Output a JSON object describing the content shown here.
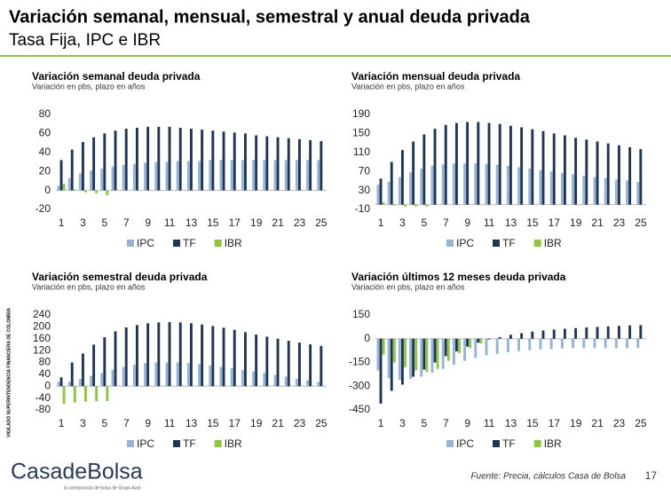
{
  "header": {
    "title": "Variación semanal, mensual, semestral y anual deuda privada",
    "subtitle": "Tasa Fija, IPC e IBR"
  },
  "side_label": "VIGILADO SUPERINTENDENCIA FINANCIERA DE COLOMBIA",
  "footer": {
    "logo": "CasadeBolsa",
    "tagline": "la comisionista de bolsa de Grupo Aval",
    "source": "Fuente: Precia, cálculos Casa de Bolsa",
    "page": "17"
  },
  "chart_data": [
    {
      "type": "bar",
      "title": "Variación semanal deuda privada",
      "subtitle": "Variación en pbs, plazo en años",
      "categories": [
        1,
        null,
        3,
        null,
        5,
        null,
        7,
        null,
        9,
        null,
        11,
        null,
        13,
        null,
        15,
        null,
        17,
        null,
        19,
        null,
        21,
        null,
        23,
        null,
        25
      ],
      "ylim": [
        -20,
        80
      ],
      "yticks": [
        -20,
        0,
        20,
        40,
        60,
        80
      ],
      "legend": "bottom",
      "series": [
        {
          "name": "IPC",
          "color": "#95b3d7",
          "values": [
            5,
            13,
            18,
            21,
            23,
            25,
            27,
            28,
            29,
            30,
            30,
            31,
            31,
            31,
            32,
            32,
            32,
            32,
            32,
            32,
            32,
            32,
            32,
            32,
            32
          ]
        },
        {
          "name": "TF",
          "color": "#1f3556",
          "values": [
            32,
            43,
            51,
            56,
            60,
            63,
            65,
            66,
            67,
            67,
            67,
            66,
            65,
            64,
            63,
            62,
            61,
            60,
            58,
            57,
            56,
            55,
            54,
            53,
            52
          ]
        },
        {
          "name": "IBR",
          "color": "#8dc63f",
          "values": [
            7,
            1,
            -2,
            -3,
            -5,
            null,
            null,
            null,
            null,
            null,
            null,
            null,
            null,
            null,
            null,
            null,
            null,
            null,
            null,
            null,
            null,
            null,
            null,
            null,
            null
          ]
        }
      ]
    },
    {
      "type": "bar",
      "title": "Variación mensual deuda privada",
      "subtitle": "Variación en pbs, plazo en años",
      "categories": [
        1,
        null,
        3,
        null,
        5,
        null,
        7,
        null,
        9,
        null,
        11,
        null,
        13,
        null,
        15,
        null,
        17,
        null,
        19,
        null,
        21,
        null,
        23,
        null,
        25
      ],
      "ylim": [
        -10,
        190
      ],
      "yticks": [
        -10,
        30,
        70,
        110,
        150,
        190
      ],
      "legend": "bottom",
      "series": [
        {
          "name": "IPC",
          "color": "#95b3d7",
          "values": [
            42,
            48,
            58,
            68,
            76,
            82,
            85,
            87,
            87,
            87,
            86,
            84,
            82,
            79,
            76,
            73,
            70,
            67,
            64,
            61,
            58,
            56,
            53,
            51,
            48
          ]
        },
        {
          "name": "TF",
          "color": "#1f3556",
          "values": [
            55,
            90,
            115,
            133,
            148,
            160,
            168,
            172,
            174,
            174,
            172,
            170,
            166,
            163,
            159,
            155,
            150,
            146,
            141,
            137,
            133,
            129,
            125,
            121,
            117
          ]
        },
        {
          "name": "IBR",
          "color": "#8dc63f",
          "values": [
            5,
            -2,
            -4,
            -4,
            -4,
            null,
            null,
            null,
            null,
            null,
            null,
            null,
            null,
            null,
            null,
            null,
            null,
            null,
            null,
            null,
            null,
            null,
            null,
            null,
            null
          ]
        }
      ]
    },
    {
      "type": "bar",
      "title": "Variación semestral deuda privada",
      "subtitle": "Variación en pbs, plazo en años",
      "categories": [
        1,
        null,
        3,
        null,
        5,
        null,
        7,
        null,
        9,
        null,
        11,
        null,
        13,
        null,
        15,
        null,
        17,
        null,
        19,
        null,
        21,
        null,
        23,
        null,
        25
      ],
      "ylim": [
        -80,
        240
      ],
      "yticks": [
        -80,
        -40,
        0,
        40,
        80,
        120,
        160,
        200,
        240
      ],
      "legend": "bottom",
      "series": [
        {
          "name": "IPC",
          "color": "#95b3d7",
          "values": [
            15,
            15,
            25,
            35,
            45,
            55,
            65,
            72,
            78,
            80,
            80,
            80,
            78,
            75,
            70,
            65,
            60,
            55,
            50,
            45,
            38,
            32,
            25,
            20,
            15
          ]
        },
        {
          "name": "TF",
          "color": "#1f3556",
          "values": [
            30,
            80,
            110,
            140,
            165,
            185,
            198,
            206,
            212,
            215,
            216,
            215,
            212,
            208,
            203,
            197,
            190,
            182,
            174,
            167,
            160,
            153,
            147,
            141,
            136
          ]
        },
        {
          "name": "IBR",
          "color": "#8dc63f",
          "values": [
            -60,
            -55,
            -52,
            -50,
            -50,
            null,
            null,
            null,
            null,
            null,
            null,
            null,
            null,
            null,
            null,
            null,
            null,
            null,
            null,
            null,
            null,
            null,
            null,
            null,
            null
          ]
        }
      ]
    },
    {
      "type": "bar",
      "title": "Variación últimos 12 meses deuda privada",
      "subtitle": "Variación en pbs, plazo en años",
      "categories": [
        1,
        null,
        3,
        null,
        5,
        null,
        7,
        null,
        9,
        null,
        11,
        null,
        13,
        null,
        15,
        null,
        17,
        null,
        19,
        null,
        21,
        null,
        23,
        null,
        25
      ],
      "ylim": [
        -450,
        150
      ],
      "yticks": [
        -450,
        -300,
        -150,
        0,
        150
      ],
      "legend": "bottom",
      "series": [
        {
          "name": "IPC",
          "color": "#95b3d7",
          "values": [
            -200,
            -250,
            -260,
            -255,
            -240,
            -215,
            -190,
            -165,
            -140,
            -120,
            -105,
            -95,
            -85,
            -78,
            -72,
            -68,
            -65,
            -62,
            -60,
            -60,
            -60,
            -60,
            -60,
            -60,
            -60
          ]
        },
        {
          "name": "TF",
          "color": "#1f3556",
          "values": [
            -410,
            -330,
            -290,
            -240,
            -195,
            -150,
            -110,
            -80,
            -50,
            -25,
            -5,
            10,
            25,
            35,
            45,
            52,
            58,
            63,
            67,
            71,
            75,
            78,
            81,
            84,
            86
          ]
        },
        {
          "name": "IBR",
          "color": "#8dc63f",
          "values": [
            -100,
            -150,
            -180,
            -200,
            -210,
            -190,
            -140,
            -90,
            -60,
            -30,
            null,
            null,
            null,
            null,
            null,
            null,
            null,
            null,
            null,
            null,
            null,
            null,
            null,
            null,
            null
          ]
        }
      ]
    }
  ]
}
